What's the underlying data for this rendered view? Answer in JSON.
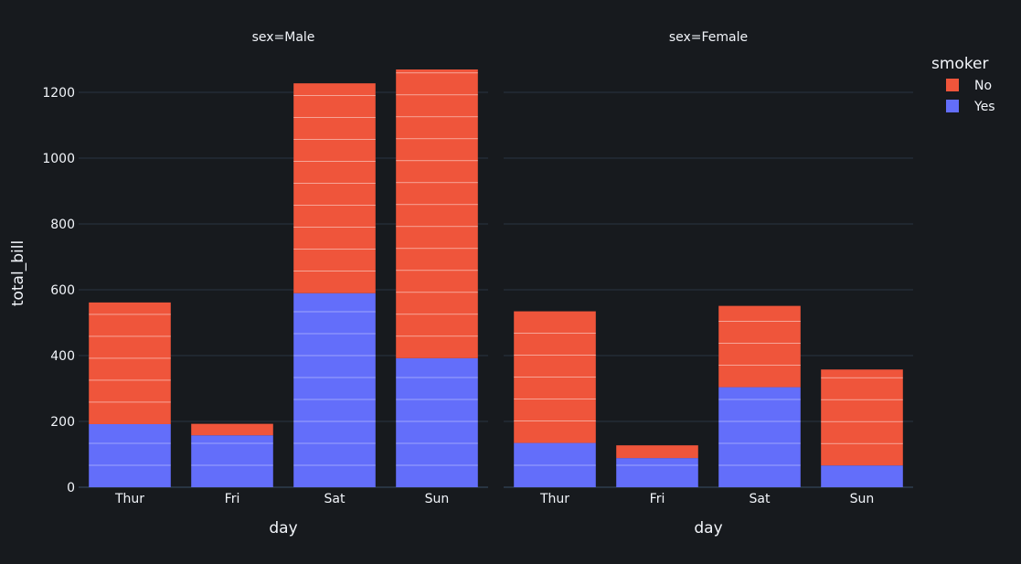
{
  "colors": {
    "background": "#171a1e",
    "grid": "#283442",
    "text": "#f2f5fa",
    "No": "#ef553b",
    "Yes": "#636efa",
    "segment_line": "#ffffff"
  },
  "chart_data": {
    "type": "bar",
    "barmode": "stack",
    "xlabel": "day",
    "ylabel": "total_bill",
    "ylim": [
      0,
      1300
    ],
    "yticks": [
      0,
      200,
      400,
      600,
      800,
      1000,
      1200
    ],
    "categories": [
      "Thur",
      "Fri",
      "Sat",
      "Sun"
    ],
    "grid": true,
    "legend": {
      "title": "smoker",
      "position": "top-right",
      "entries": [
        "No",
        "Yes"
      ]
    },
    "facets": [
      {
        "title": "sex=Male",
        "series": [
          {
            "name": "Yes",
            "values": [
              191.71,
              157.76,
              589.62,
              392.12
            ]
          },
          {
            "name": "No",
            "values": [
              369.73,
              34.95,
              637.73,
              877.34
            ]
          }
        ]
      },
      {
        "title": "sex=Female",
        "series": [
          {
            "name": "Yes",
            "values": [
              134.53,
              88.58,
              304.0,
              66.16
            ]
          },
          {
            "name": "No",
            "values": [
              400.0,
              38.73,
              247.05,
              291.54
            ]
          }
        ]
      }
    ]
  }
}
